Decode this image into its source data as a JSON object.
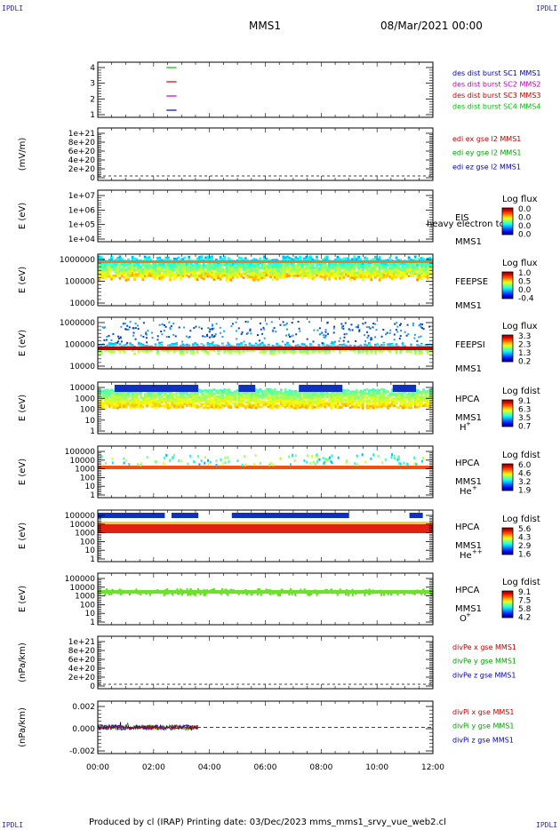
{
  "corner_label": "IPDLI",
  "header": {
    "spacecraft": "MMS1",
    "date": "08/Mar/2021 00:00"
  },
  "footer": {
    "text": "Produced by cl (IRAP)   Printing date: 03/Dec/2023   mms_mms1_srvy_vue_web2.cl"
  },
  "chart_data": {
    "type": "heatmap",
    "x_ticks": [
      "00:00",
      "02:00",
      "04:00",
      "06:00",
      "08:00",
      "10:00",
      "12:00"
    ],
    "panels": [
      {
        "id": "burst",
        "ylabel": "",
        "yticks": [
          "4",
          "3",
          "2",
          "1"
        ],
        "legend": [
          {
            "text": "des dist burst SC1 MMS1",
            "color": "#0000c0"
          },
          {
            "text": "des dist burst SC2 MMS2",
            "color": "#c000c0"
          },
          {
            "text": "des dist burst SC3 MMS3",
            "color": "#c00000"
          },
          {
            "text": "des dist burst SC4 MMS4",
            "color": "#00c000"
          }
        ],
        "marks": [
          {
            "y": 4,
            "color": "#00c000"
          },
          {
            "y": 3,
            "color": "#d00000"
          },
          {
            "y": 2,
            "color": "#c000c0"
          },
          {
            "y": 1,
            "color": "#0000c0"
          }
        ]
      },
      {
        "id": "edi",
        "ylabel": "(mV/m)",
        "yticks": [
          "1e+21",
          "8e+20",
          "6e+20",
          "4e+20",
          "2e+20",
          "0"
        ],
        "legend": [
          {
            "text": "edi ex gse l2 MMS1",
            "color": "#c00000"
          },
          {
            "text": "edi ey gse l2 MMS1",
            "color": "#00a000"
          },
          {
            "text": "edi ez gse l2 MMS1",
            "color": "#0000c0"
          }
        ]
      },
      {
        "id": "eis",
        "ylabel": "E (eV)",
        "yticks": [
          "1e+07",
          "1e+06",
          "1e+05",
          "1e+04"
        ],
        "labels": [
          "EIS",
          "MMS1"
        ],
        "overlay": "heavy electron to",
        "cbar_title": "Log flux",
        "cbar_ticks": [
          "0.0",
          "0.0",
          "0.0",
          "0.0"
        ]
      },
      {
        "id": "feepse",
        "ylabel": "E (eV)",
        "yticks": [
          "1000000",
          "100000",
          "10000"
        ],
        "labels": [
          "FEEPSE",
          "MMS1"
        ],
        "cbar_title": "Log flux",
        "cbar_ticks": [
          "1.0",
          "0.5",
          "0.0",
          "-0.4"
        ]
      },
      {
        "id": "feepsi",
        "ylabel": "E (eV)",
        "yticks": [
          "1000000",
          "100000",
          "10000"
        ],
        "labels": [
          "FEEPSI",
          "MMS1"
        ],
        "cbar_title": "Log flux",
        "cbar_ticks": [
          "3.3",
          "2.3",
          "1.3",
          "0.2"
        ]
      },
      {
        "id": "hpca_h",
        "ylabel": "E (eV)",
        "yticks": [
          "10000",
          "1000",
          "100",
          "10",
          "1"
        ],
        "labels": [
          "HPCA",
          "MMS1"
        ],
        "species": "H",
        "species_sup": "+",
        "cbar_title": "Log fdist",
        "cbar_ticks": [
          "9.1",
          "6.3",
          "3.5",
          "0.7"
        ]
      },
      {
        "id": "hpca_he",
        "ylabel": "E (eV)",
        "yticks": [
          "100000",
          "10000",
          "1000",
          "100",
          "10",
          "1"
        ],
        "labels": [
          "HPCA",
          "MMS1"
        ],
        "species": "He",
        "species_sup": "+",
        "cbar_title": "Log fdist",
        "cbar_ticks": [
          "6.0",
          "4.6",
          "3.2",
          "1.9"
        ]
      },
      {
        "id": "hpca_hepp",
        "ylabel": "E (eV)",
        "yticks": [
          "100000",
          "10000",
          "1000",
          "100",
          "10",
          "1"
        ],
        "labels": [
          "HPCA",
          "MMS1"
        ],
        "species": "He",
        "species_sup": "++",
        "cbar_title": "Log fdist",
        "cbar_ticks": [
          "5.6",
          "4.3",
          "2.9",
          "1.6"
        ]
      },
      {
        "id": "hpca_o",
        "ylabel": "E (eV)",
        "yticks": [
          "100000",
          "10000",
          "1000",
          "100",
          "10",
          "1"
        ],
        "labels": [
          "HPCA",
          "MMS1"
        ],
        "species": "O",
        "species_sup": "+",
        "cbar_title": "Log fdist",
        "cbar_ticks": [
          "9.1",
          "7.5",
          "5.8",
          "4.2"
        ]
      },
      {
        "id": "divpe",
        "ylabel": "(nPa/km)",
        "yticks": [
          "1e+21",
          "8e+20",
          "6e+20",
          "4e+20",
          "2e+20",
          "0"
        ],
        "legend": [
          {
            "text": "divPe x gse MMS1",
            "color": "#c00000"
          },
          {
            "text": "divPe y gse MMS1",
            "color": "#00a000"
          },
          {
            "text": "divPe z gse MMS1",
            "color": "#0000c0"
          }
        ]
      },
      {
        "id": "divpi",
        "ylabel": "(nPa/km)",
        "yticks": [
          "0.002",
          "0.000",
          "-0.002"
        ],
        "legend": [
          {
            "text": "divPi x gse MMS1",
            "color": "#c00000"
          },
          {
            "text": "divPi y gse MMS1",
            "color": "#00a000"
          },
          {
            "text": "divPi z gse MMS1",
            "color": "#0000c0"
          }
        ],
        "data_range_hours": [
          0,
          3.6
        ]
      }
    ]
  }
}
